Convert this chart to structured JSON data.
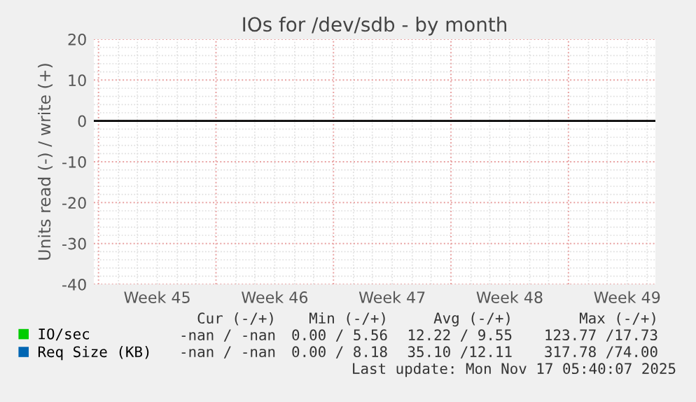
{
  "chart_data": {
    "type": "line",
    "title": "IOs for /dev/sdb - by month",
    "ylabel": "Units read (-) / write (+)",
    "categories": [
      "Week 45",
      "Week 46",
      "Week 47",
      "Week 48",
      "Week 49"
    ],
    "series": [
      {
        "name": "IO/sec",
        "color": "#00cc00",
        "values": [
          null,
          null,
          null,
          null,
          null
        ]
      },
      {
        "name": "Req Size (KB)",
        "color": "#0066b3",
        "values": [
          null,
          null,
          null,
          null,
          null
        ]
      }
    ],
    "ylim": [
      -40,
      20
    ],
    "yticks": [
      -40,
      -30,
      -20,
      -10,
      0,
      10,
      20
    ],
    "grid": true,
    "legend": "bottom",
    "ref_lines": [
      {
        "axis": "y",
        "value": 0,
        "color": "#000000"
      }
    ],
    "annotations": [
      "Cur (-/+)",
      "Min (-/+)",
      "Avg (-/+)",
      "Max (-/+)",
      "-nan / -nan",
      "0.00 / 5.56",
      "12.22 / 9.55",
      "123.77 /17.73",
      "-nan / -nan",
      "0.00 / 8.18",
      "35.10 /12.11",
      "317.78 /74.00",
      "Last update: Mon Nov 17 05:40:07 2025"
    ]
  }
}
